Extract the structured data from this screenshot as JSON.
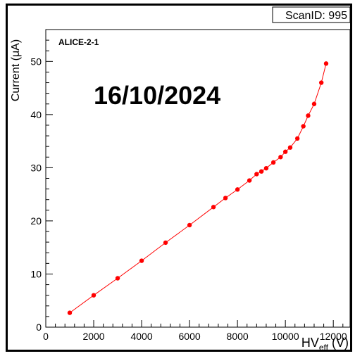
{
  "scan_label": "ScanID: 995",
  "date_overlay": "16/10/2024",
  "chart_data": {
    "type": "scatter",
    "detector": "ALICE-2-1",
    "xlabel": {
      "main": "HV",
      "sub": "eff",
      "unit": " (V)"
    },
    "ylabel": "Current (μA)",
    "xlim": [
      0,
      12700
    ],
    "ylim": [
      0,
      56
    ],
    "xticks": [
      0,
      2000,
      4000,
      6000,
      8000,
      10000,
      12000
    ],
    "yticks": [
      0,
      10,
      20,
      30,
      40,
      50
    ],
    "grid": false,
    "marker_color": "#ff0000",
    "line_color": "#ff0000",
    "series": [
      {
        "x": [
          1000,
          2000,
          3000,
          4000,
          5000,
          6000,
          7000,
          7500,
          8000,
          8500,
          8800,
          9000,
          9200,
          9500,
          9800,
          10000,
          10200,
          10500,
          10750,
          10950,
          11200,
          11500,
          11700
        ],
        "y": [
          2.7,
          6.0,
          9.2,
          12.5,
          15.9,
          19.2,
          22.6,
          24.3,
          25.9,
          27.6,
          28.8,
          29.3,
          29.9,
          31.0,
          32.0,
          33.0,
          33.8,
          35.5,
          37.8,
          39.8,
          42.0,
          46.0,
          49.6
        ]
      }
    ]
  }
}
